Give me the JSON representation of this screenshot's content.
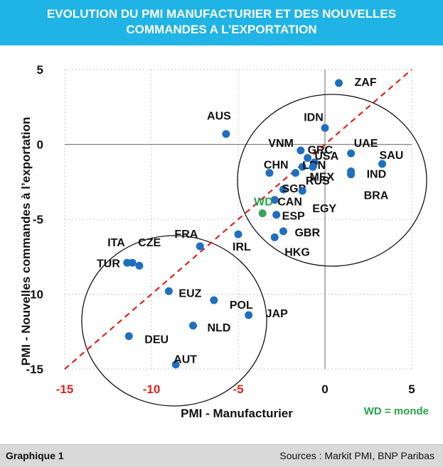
{
  "header": {
    "title_line1": "EVOLUTION DU PMI MANUFACTURIER ET DES NOUVELLES",
    "title_line2": "COMMANDES A L’EXPORTATION"
  },
  "footer": {
    "label": "Graphique 1",
    "sources": "Sources : Markit PMI, BNP Paribas"
  },
  "colors": {
    "title_bg": "#1fb3e6",
    "point": "#1f6fc0",
    "world_point": "#3aa35a",
    "world_label": "#2aa24a",
    "tick_label": "#e3221b",
    "diagonal": "#e3221b",
    "footer_bg": "#d9d9d9"
  },
  "chart_data": {
    "type": "scatter",
    "xlabel": "PMI - Manufacturier",
    "ylabel": "PMI - Nouvelles commandes à l’exportation",
    "xlim": [
      -15,
      5
    ],
    "ylim": [
      -15,
      5
    ],
    "x_ticks": [
      "-15",
      "-10",
      "-5",
      "0",
      "5"
    ],
    "y_ticks": [
      "5",
      "0",
      "-5",
      "-10",
      "-15"
    ],
    "legend_note": "WD = monde",
    "diagonal": "y = x",
    "points": [
      {
        "label": "ZAF",
        "x": 0.8,
        "y": 4.1
      },
      {
        "label": "AUS",
        "x": -5.7,
        "y": 0.7
      },
      {
        "label": "IDN",
        "x": 0.0,
        "y": 1.1
      },
      {
        "label": "VNM",
        "x": -1.4,
        "y": -0.4
      },
      {
        "label": "GRC",
        "x": -1.0,
        "y": -0.9
      },
      {
        "label": "UAE",
        "x": 1.5,
        "y": -0.6
      },
      {
        "label": "USA",
        "x": -0.6,
        "y": -1.2
      },
      {
        "label": "SAU",
        "x": 3.3,
        "y": -1.3
      },
      {
        "label": "LBN",
        "x": -1.3,
        "y": -1.5
      },
      {
        "label": "CHN",
        "x": -3.2,
        "y": -1.9
      },
      {
        "label": "MEX",
        "x": -1.7,
        "y": -1.9
      },
      {
        "label": "IND",
        "x": 1.5,
        "y": -1.8
      },
      {
        "label": "RUS",
        "x": -0.7,
        "y": -1.5
      },
      {
        "label": "BRA",
        "x": 1.5,
        "y": -2.0
      },
      {
        "label": "SGP",
        "x": -2.4,
        "y": -3.0
      },
      {
        "label": "EGY",
        "x": -1.3,
        "y": -3.1
      },
      {
        "label": "CAN",
        "x": -2.9,
        "y": -3.7
      },
      {
        "label": "ESP",
        "x": -2.8,
        "y": -4.7
      },
      {
        "label": "WD",
        "x": -3.6,
        "y": -4.6,
        "world": true
      },
      {
        "label": "GBR",
        "x": -2.4,
        "y": -5.8
      },
      {
        "label": "IRL",
        "x": -5.0,
        "y": -6.0
      },
      {
        "label": "HKG",
        "x": -2.9,
        "y": -6.2
      },
      {
        "label": "FRA",
        "x": -7.2,
        "y": -6.8
      },
      {
        "label": "ITA",
        "x": -11.4,
        "y": -7.9
      },
      {
        "label": "CZE",
        "x": -11.1,
        "y": -7.9
      },
      {
        "label": "TUR",
        "x": -10.7,
        "y": -8.1
      },
      {
        "label": "EUZ",
        "x": -9.0,
        "y": -9.8
      },
      {
        "label": "POL",
        "x": -6.4,
        "y": -10.4
      },
      {
        "label": "JAP",
        "x": -4.4,
        "y": -11.4
      },
      {
        "label": "NLD",
        "x": -7.6,
        "y": -12.1
      },
      {
        "label": "DEU",
        "x": -11.3,
        "y": -12.8
      },
      {
        "label": "AUT",
        "x": -8.6,
        "y": -14.7
      }
    ]
  }
}
